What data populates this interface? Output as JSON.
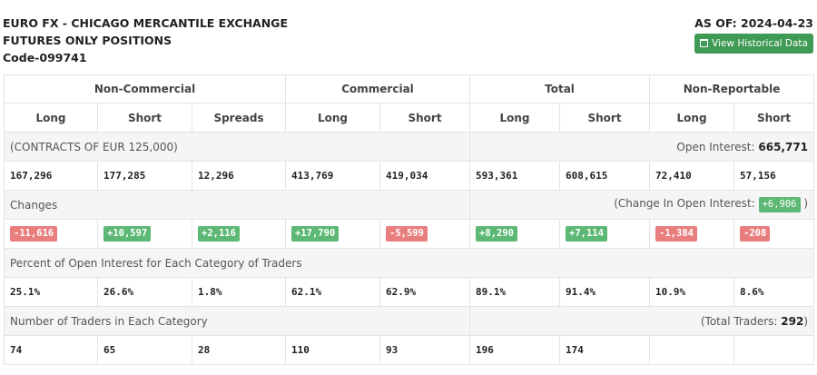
{
  "header": {
    "title_line1": "EURO FX - CHICAGO MERCANTILE EXCHANGE",
    "title_line2": "FUTURES ONLY POSITIONS",
    "code": "Code-099741",
    "as_of": "AS OF: 2024-04-23",
    "history_button": "View Historical Data",
    "history_icon": "calendar-icon"
  },
  "groups": [
    "Non-Commercial",
    "Commercial",
    "Total",
    "Non-Reportable"
  ],
  "columns": [
    "Long",
    "Short",
    "Spreads",
    "Long",
    "Short",
    "Long",
    "Short",
    "Long",
    "Short"
  ],
  "contracts": {
    "label": "(CONTRACTS OF EUR 125,000)",
    "open_interest_label": "Open Interest:",
    "open_interest_value": "665,771",
    "values": [
      "167,296",
      "177,285",
      "12,296",
      "413,769",
      "419,034",
      "593,361",
      "608,615",
      "72,410",
      "57,156"
    ]
  },
  "changes": {
    "label": "Changes",
    "oi_change_label": "(Change In Open Interest:",
    "oi_change_value": "+6,906",
    "oi_change_close": ")",
    "values": [
      "-11,616",
      "+10,597",
      "+2,116",
      "+17,790",
      "-5,599",
      "+8,290",
      "+7,114",
      "-1,384",
      "-208"
    ],
    "colors": {
      "positive": "#5cb874",
      "negative": "#e97e7e"
    }
  },
  "percent": {
    "label": "Percent of Open Interest for Each Category of Traders",
    "values": [
      "25.1%",
      "26.6%",
      "1.8%",
      "62.1%",
      "62.9%",
      "89.1%",
      "91.4%",
      "10.9%",
      "8.6%"
    ]
  },
  "traders": {
    "label": "Number of Traders in Each Category",
    "total_label": "(Total Traders:",
    "total_value": "292",
    "total_close": ")",
    "values": [
      "74",
      "65",
      "28",
      "110",
      "93",
      "196",
      "174",
      "",
      ""
    ]
  }
}
